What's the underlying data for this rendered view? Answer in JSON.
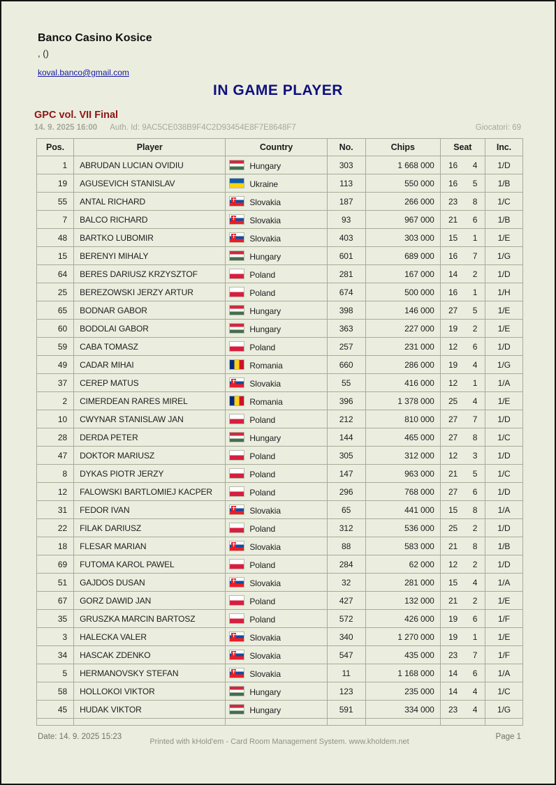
{
  "header": {
    "venue": "Banco Casino Kosice",
    "subtitle": ", ()",
    "email": "koval.banco@gmail.com",
    "title": "IN GAME PLAYER"
  },
  "event": {
    "name": "GPC vol. VII Final",
    "datetime": "14. 9. 2025 16:00",
    "auth_id": "Auth. Id: 9AC5CE038B9F4C2D93454E8F7E8648F7",
    "players_label": "Giocatori: 69"
  },
  "table": {
    "columns": {
      "pos": "Pos.",
      "player": "Player",
      "country": "Country",
      "no": "No.",
      "chips": "Chips",
      "seat": "Seat",
      "inc": "Inc."
    },
    "rows": [
      {
        "pos": "1",
        "player": "ABRUDAN LUCIAN OVIDIU",
        "flag": "hu",
        "country": "Hungary",
        "no": "303",
        "chips": "1 668 000",
        "table_no": "16",
        "seat": "4",
        "inc": "1/D"
      },
      {
        "pos": "19",
        "player": "AGUSEVICH STANISLAV",
        "flag": "ua",
        "country": "Ukraine",
        "no": "113",
        "chips": "550 000",
        "table_no": "16",
        "seat": "5",
        "inc": "1/B"
      },
      {
        "pos": "55",
        "player": "ANTAL RICHARD",
        "flag": "sk",
        "country": "Slovakia",
        "no": "187",
        "chips": "266 000",
        "table_no": "23",
        "seat": "8",
        "inc": "1/C"
      },
      {
        "pos": "7",
        "player": "BALCO RICHARD",
        "flag": "sk",
        "country": "Slovakia",
        "no": "93",
        "chips": "967 000",
        "table_no": "21",
        "seat": "6",
        "inc": "1/B"
      },
      {
        "pos": "48",
        "player": "BARTKO LUBOMIR",
        "flag": "sk",
        "country": "Slovakia",
        "no": "403",
        "chips": "303 000",
        "table_no": "15",
        "seat": "1",
        "inc": "1/E"
      },
      {
        "pos": "15",
        "player": "BERENYI MIHALY",
        "flag": "hu",
        "country": "Hungary",
        "no": "601",
        "chips": "689 000",
        "table_no": "16",
        "seat": "7",
        "inc": "1/G"
      },
      {
        "pos": "64",
        "player": "BERES DARIUSZ KRZYSZTOF",
        "flag": "pl",
        "country": "Poland",
        "no": "281",
        "chips": "167 000",
        "table_no": "14",
        "seat": "2",
        "inc": "1/D"
      },
      {
        "pos": "25",
        "player": "BEREZOWSKI JERZY ARTUR",
        "flag": "pl",
        "country": "Poland",
        "no": "674",
        "chips": "500 000",
        "table_no": "16",
        "seat": "1",
        "inc": "1/H"
      },
      {
        "pos": "65",
        "player": "BODNAR GABOR",
        "flag": "hu",
        "country": "Hungary",
        "no": "398",
        "chips": "146 000",
        "table_no": "27",
        "seat": "5",
        "inc": "1/E"
      },
      {
        "pos": "60",
        "player": "BODOLAI GABOR",
        "flag": "hu",
        "country": "Hungary",
        "no": "363",
        "chips": "227 000",
        "table_no": "19",
        "seat": "2",
        "inc": "1/E"
      },
      {
        "pos": "59",
        "player": "CABA TOMASZ",
        "flag": "pl",
        "country": "Poland",
        "no": "257",
        "chips": "231 000",
        "table_no": "12",
        "seat": "6",
        "inc": "1/D"
      },
      {
        "pos": "49",
        "player": "CADAR MIHAI",
        "flag": "ro",
        "country": "Romania",
        "no": "660",
        "chips": "286 000",
        "table_no": "19",
        "seat": "4",
        "inc": "1/G"
      },
      {
        "pos": "37",
        "player": "CEREP MATUS",
        "flag": "sk",
        "country": "Slovakia",
        "no": "55",
        "chips": "416 000",
        "table_no": "12",
        "seat": "1",
        "inc": "1/A"
      },
      {
        "pos": "2",
        "player": "CIMERDEAN RARES MIREL",
        "flag": "ro",
        "country": "Romania",
        "no": "396",
        "chips": "1 378 000",
        "table_no": "25",
        "seat": "4",
        "inc": "1/E"
      },
      {
        "pos": "10",
        "player": "CWYNAR STANISLAW JAN",
        "flag": "pl",
        "country": "Poland",
        "no": "212",
        "chips": "810 000",
        "table_no": "27",
        "seat": "7",
        "inc": "1/D"
      },
      {
        "pos": "28",
        "player": "DERDA PETER",
        "flag": "hu",
        "country": "Hungary",
        "no": "144",
        "chips": "465 000",
        "table_no": "27",
        "seat": "8",
        "inc": "1/C"
      },
      {
        "pos": "47",
        "player": "DOKTOR MARIUSZ",
        "flag": "pl",
        "country": "Poland",
        "no": "305",
        "chips": "312 000",
        "table_no": "12",
        "seat": "3",
        "inc": "1/D"
      },
      {
        "pos": "8",
        "player": "DYKAS PIOTR JERZY",
        "flag": "pl",
        "country": "Poland",
        "no": "147",
        "chips": "963 000",
        "table_no": "21",
        "seat": "5",
        "inc": "1/C"
      },
      {
        "pos": "12",
        "player": "FALOWSKI BARTLOMIEJ KACPER",
        "flag": "pl",
        "country": "Poland",
        "no": "296",
        "chips": "768 000",
        "table_no": "27",
        "seat": "6",
        "inc": "1/D"
      },
      {
        "pos": "31",
        "player": "FEDOR IVAN",
        "flag": "sk",
        "country": "Slovakia",
        "no": "65",
        "chips": "441 000",
        "table_no": "15",
        "seat": "8",
        "inc": "1/A"
      },
      {
        "pos": "22",
        "player": "FILAK DARIUSZ",
        "flag": "pl",
        "country": "Poland",
        "no": "312",
        "chips": "536 000",
        "table_no": "25",
        "seat": "2",
        "inc": "1/D"
      },
      {
        "pos": "18",
        "player": "FLESAR MARIAN",
        "flag": "sk",
        "country": "Slovakia",
        "no": "88",
        "chips": "583 000",
        "table_no": "21",
        "seat": "8",
        "inc": "1/B"
      },
      {
        "pos": "69",
        "player": "FUTOMA KAROL PAWEL",
        "flag": "pl",
        "country": "Poland",
        "no": "284",
        "chips": "62 000",
        "table_no": "12",
        "seat": "2",
        "inc": "1/D"
      },
      {
        "pos": "51",
        "player": "GAJDOS DUSAN",
        "flag": "sk",
        "country": "Slovakia",
        "no": "32",
        "chips": "281 000",
        "table_no": "15",
        "seat": "4",
        "inc": "1/A"
      },
      {
        "pos": "67",
        "player": "GORZ DAWID JAN",
        "flag": "pl",
        "country": "Poland",
        "no": "427",
        "chips": "132 000",
        "table_no": "21",
        "seat": "2",
        "inc": "1/E"
      },
      {
        "pos": "35",
        "player": "GRUSZKA MARCIN BARTOSZ",
        "flag": "pl",
        "country": "Poland",
        "no": "572",
        "chips": "426 000",
        "table_no": "19",
        "seat": "6",
        "inc": "1/F"
      },
      {
        "pos": "3",
        "player": "HALECKA VALER",
        "flag": "sk",
        "country": "Slovakia",
        "no": "340",
        "chips": "1 270 000",
        "table_no": "19",
        "seat": "1",
        "inc": "1/E"
      },
      {
        "pos": "34",
        "player": "HASCAK ZDENKO",
        "flag": "sk",
        "country": "Slovakia",
        "no": "547",
        "chips": "435 000",
        "table_no": "23",
        "seat": "7",
        "inc": "1/F"
      },
      {
        "pos": "5",
        "player": "HERMANOVSKY STEFAN",
        "flag": "sk",
        "country": "Slovakia",
        "no": "11",
        "chips": "1 168 000",
        "table_no": "14",
        "seat": "6",
        "inc": "1/A"
      },
      {
        "pos": "58",
        "player": "HOLLOKOI VIKTOR",
        "flag": "hu",
        "country": "Hungary",
        "no": "123",
        "chips": "235 000",
        "table_no": "14",
        "seat": "4",
        "inc": "1/C"
      },
      {
        "pos": "45",
        "player": "HUDAK VIKTOR",
        "flag": "hu",
        "country": "Hungary",
        "no": "591",
        "chips": "334 000",
        "table_no": "23",
        "seat": "4",
        "inc": "1/G"
      }
    ]
  },
  "footer": {
    "date": "Date: 14. 9. 2025 15:23",
    "printed": "Printed with kHold'em - Card Room Management System. www.kholdem.net",
    "page": "Page 1"
  },
  "colors": {
    "page-bg": "#ebeedf",
    "grid-line": "#a6ab97",
    "title-navy": "#10107e",
    "event-maroon": "#8e1515",
    "link-blue": "#1717a0",
    "muted-gray": "#a3a89b",
    "footer-gray": "#6e7366"
  }
}
